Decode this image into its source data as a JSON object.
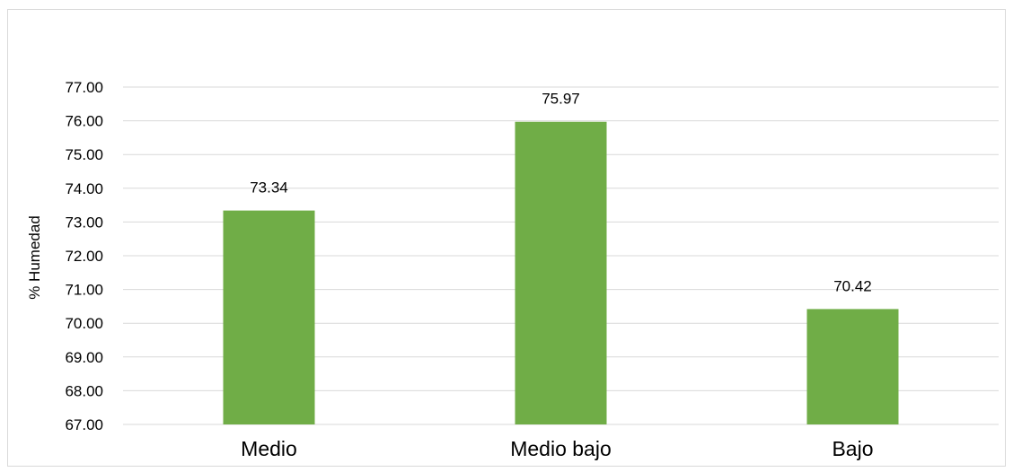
{
  "chart_data": {
    "type": "bar",
    "title": "",
    "xlabel": "",
    "ylabel": "% Humedad",
    "categories": [
      "Medio",
      "Medio bajo",
      "Bajo"
    ],
    "values": [
      73.34,
      75.97,
      70.42
    ],
    "data_labels": [
      "73.34",
      "75.97",
      "70.42"
    ],
    "ylim": [
      67,
      77
    ],
    "yticks": [
      67,
      68,
      69,
      70,
      71,
      72,
      73,
      74,
      75,
      76,
      77
    ],
    "ytick_labels": [
      "67.00",
      "68.00",
      "69.00",
      "70.00",
      "71.00",
      "72.00",
      "73.00",
      "74.00",
      "75.00",
      "76.00",
      "77.00"
    ],
    "bar_color": "#70ad47",
    "grid": true,
    "gridline_color": "#d9d9d9",
    "legend": "none"
  }
}
